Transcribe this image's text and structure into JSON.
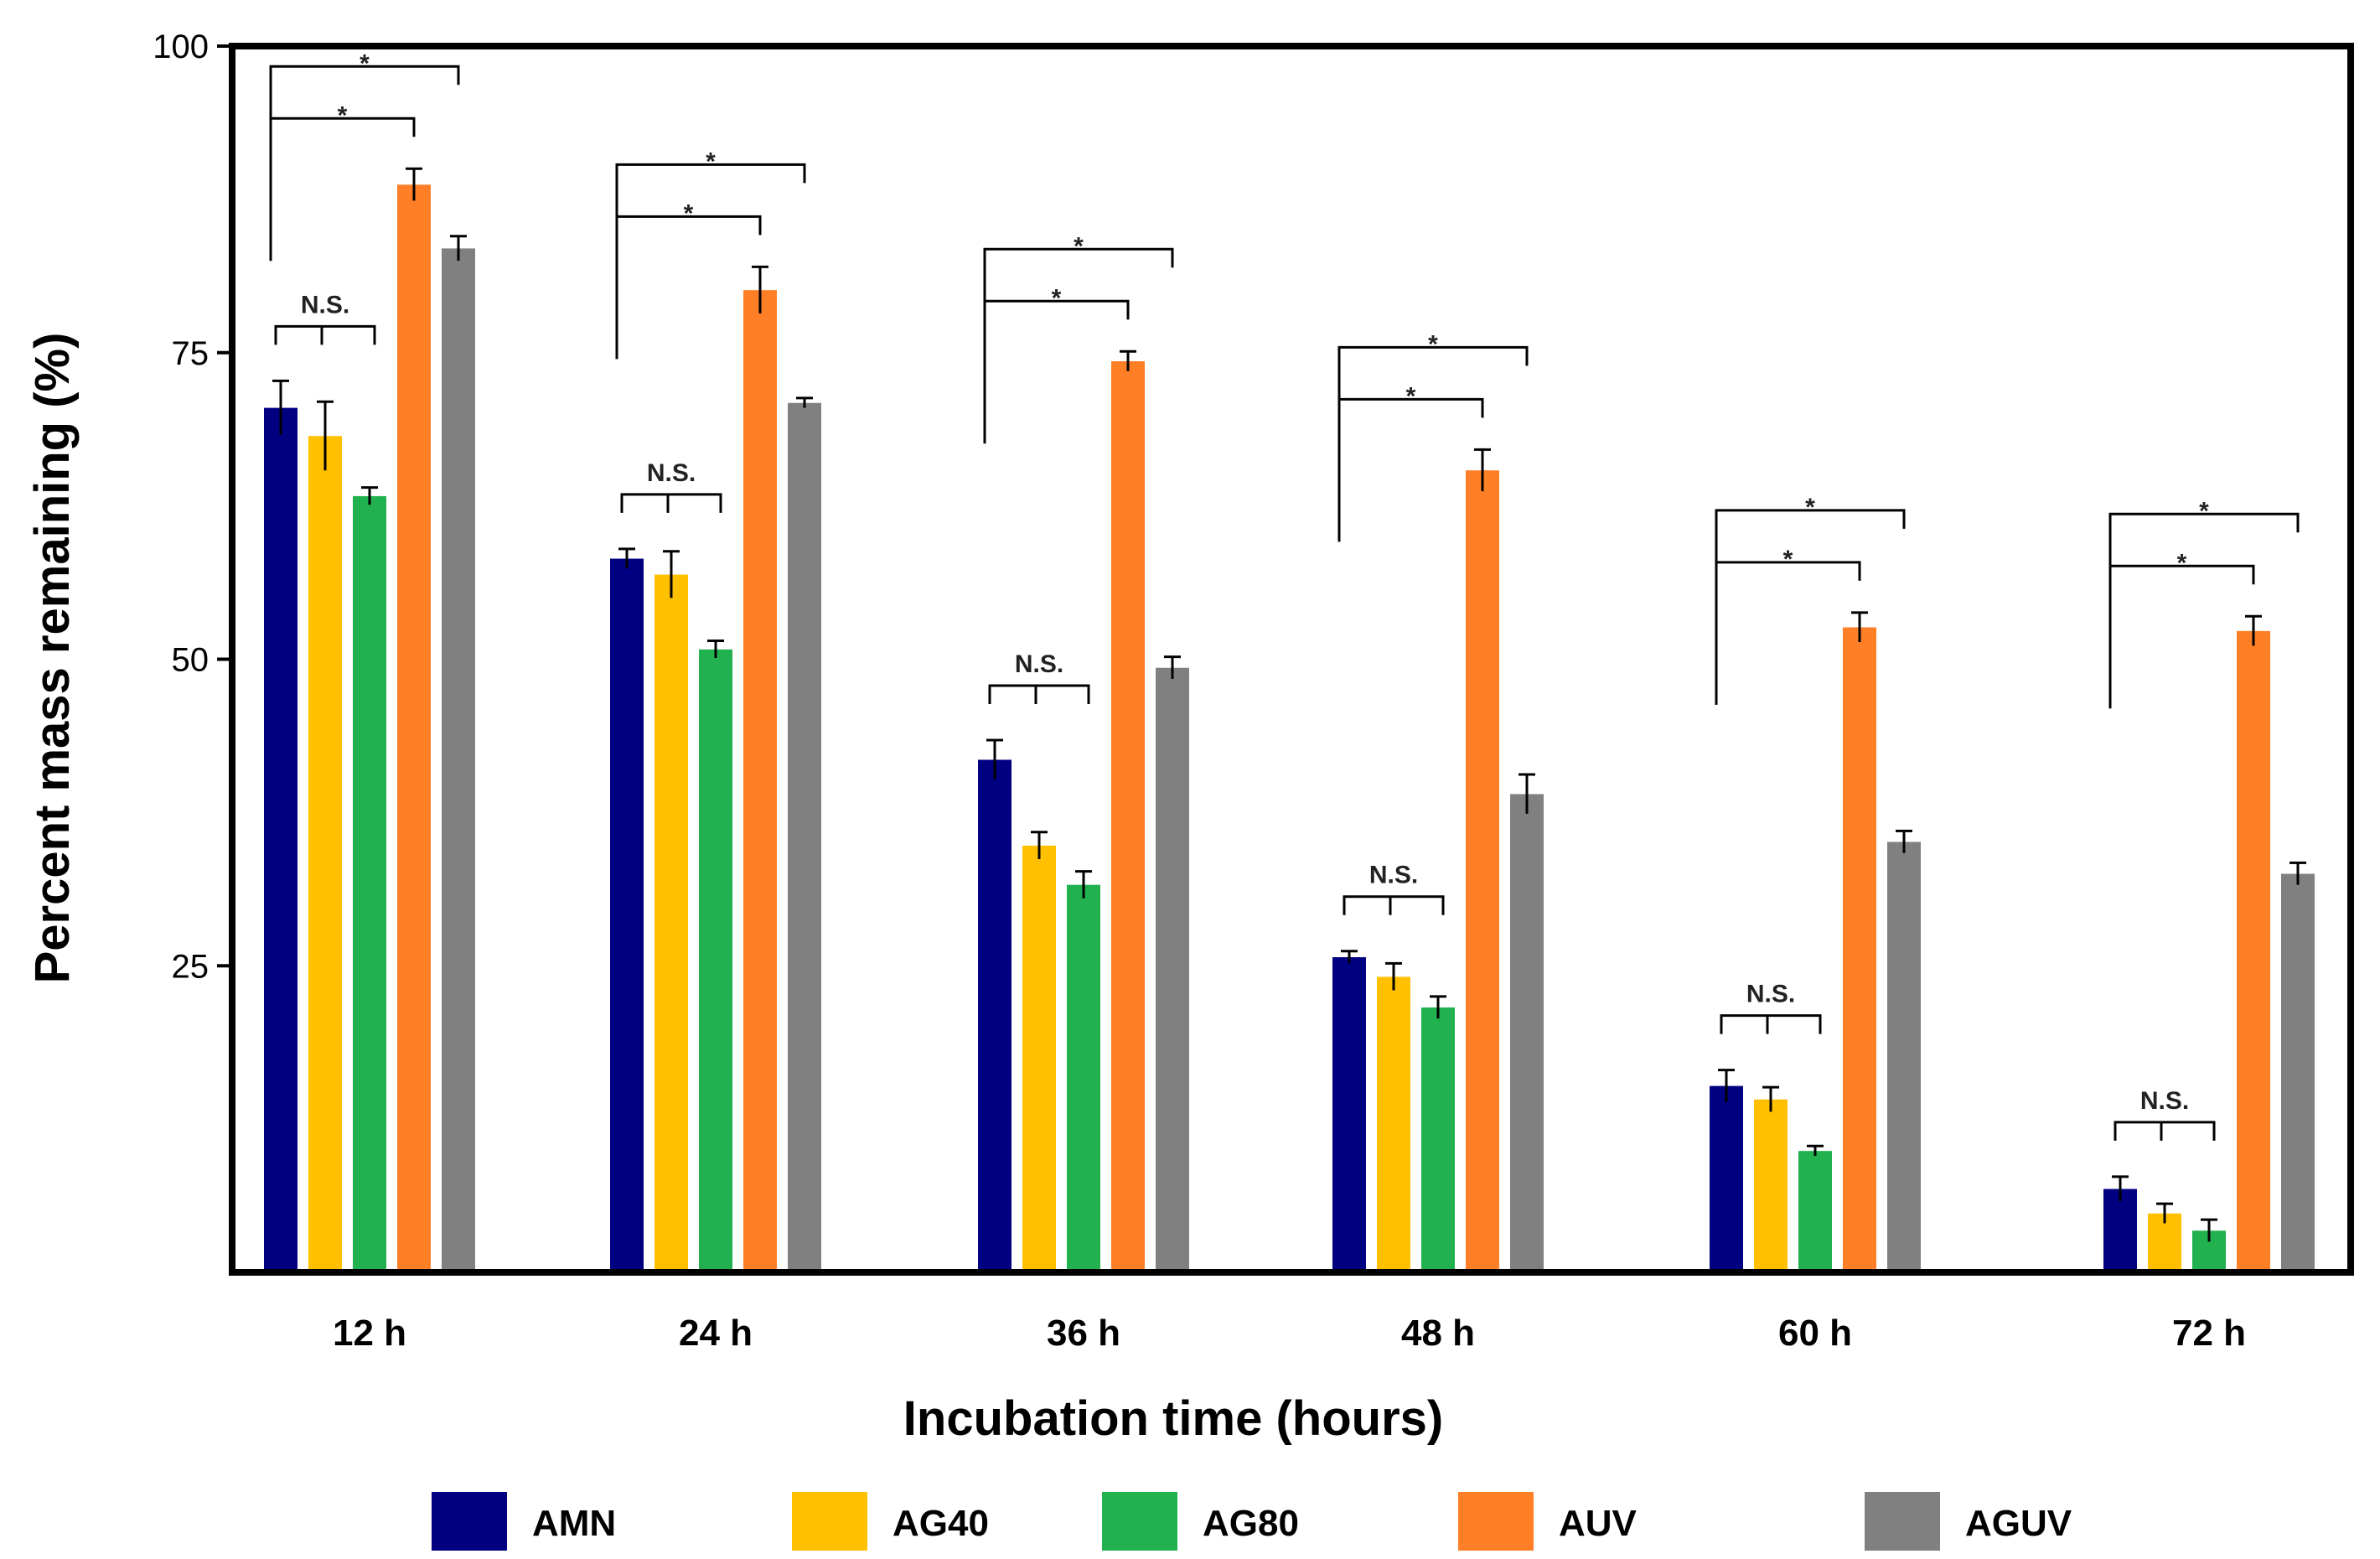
{
  "chart_data": {
    "type": "bar",
    "title": "",
    "xlabel": "Incubation time (hours)",
    "ylabel": "Percent mass remaining (%)",
    "ylim": [
      0,
      100
    ],
    "yticks": [
      "25",
      "50",
      "75",
      "100"
    ],
    "grid": false,
    "legend_position": "bottom",
    "categories": [
      "12 h",
      "24 h",
      "36 h",
      "48 h",
      "60 h",
      "72 h"
    ],
    "series": [
      {
        "name": "AMN",
        "color": "#000080",
        "values": [
          70.5,
          58.2,
          41.8,
          25.7,
          15.2,
          6.8
        ],
        "errors": [
          2.2,
          0.8,
          1.6,
          0.5,
          1.3,
          1.0
        ]
      },
      {
        "name": "AG40",
        "color": "#FFC000",
        "values": [
          68.2,
          56.9,
          34.8,
          24.1,
          14.1,
          4.8
        ],
        "errors": [
          2.8,
          1.9,
          1.1,
          1.1,
          1.0,
          0.8
        ]
      },
      {
        "name": "AG80",
        "color": "#21B14F",
        "values": [
          63.3,
          50.8,
          31.6,
          21.6,
          9.9,
          3.4
        ],
        "errors": [
          0.7,
          0.7,
          1.1,
          0.9,
          0.4,
          0.9
        ]
      },
      {
        "name": "AUV",
        "color": "#FF7F27",
        "values": [
          88.7,
          80.1,
          74.3,
          65.4,
          52.6,
          52.3
        ],
        "errors": [
          1.3,
          1.9,
          0.8,
          1.7,
          1.2,
          1.2
        ]
      },
      {
        "name": "AGUV",
        "color": "#808080",
        "values": [
          83.5,
          70.9,
          49.3,
          39.0,
          35.1,
          32.5
        ],
        "errors": [
          1.0,
          0.4,
          0.9,
          1.6,
          0.9,
          0.9
        ]
      }
    ],
    "annotations": {
      "ns_label": "N.S.",
      "sig_label": "*"
    }
  }
}
